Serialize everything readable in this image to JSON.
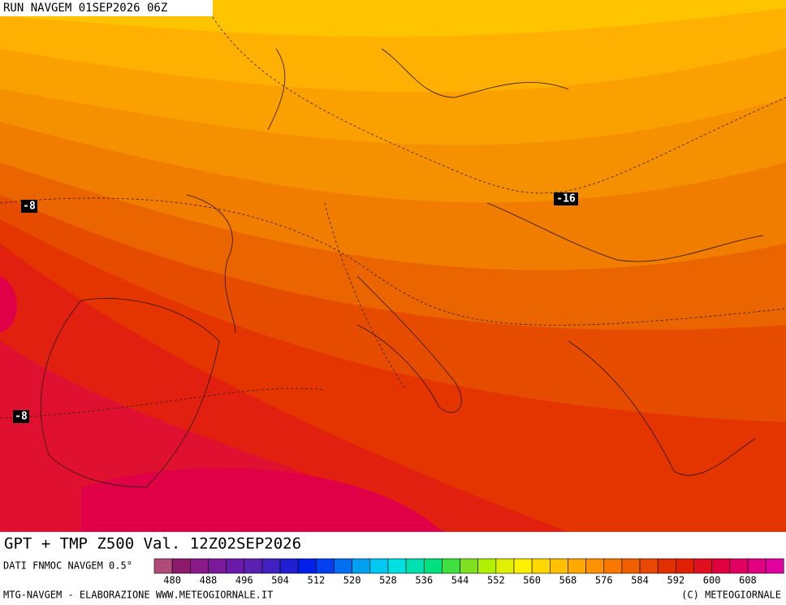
{
  "header": "RUN NAVGEM 01SEP2026 06Z",
  "labels": [
    "-8",
    "-16",
    "-8"
  ],
  "title": "GPT + TMP Z500 Val. 12Z02SEP2026",
  "source": "DATI FNMOC NAVGEM 0.5°",
  "colorbar": {
    "colors": [
      "#b04a78",
      "#8c1a6a",
      "#8a1a8a",
      "#7a1a9a",
      "#6a1aa8",
      "#5a20b0",
      "#4020c0",
      "#2020d0",
      "#0020e8",
      "#0040f0",
      "#0070f0",
      "#00a0f0",
      "#00c8f0",
      "#00e0e0",
      "#00e0b0",
      "#00e080",
      "#40e040",
      "#80e020",
      "#b0f000",
      "#e0f000",
      "#fff000",
      "#ffd800",
      "#ffc000",
      "#ffa800",
      "#ff9000",
      "#f87800",
      "#f06000",
      "#e84800",
      "#e03000",
      "#e02000",
      "#e01020",
      "#e00040",
      "#e00060",
      "#e00080",
      "#e000a0"
    ],
    "ticks": [
      480,
      488,
      496,
      504,
      512,
      520,
      528,
      536,
      544,
      552,
      560,
      568,
      576,
      584,
      592,
      600,
      608
    ]
  },
  "footer": {
    "left": "MTG-NAVGEM - ELABORAZIONE WWW.METEOGIORNALE.IT",
    "right": "(C) METEOGIORNALE"
  }
}
